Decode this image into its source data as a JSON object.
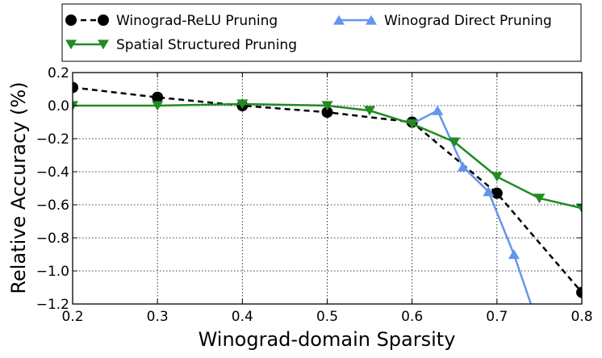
{
  "chart_data": {
    "type": "line",
    "xlabel": "Winograd-domain Sparsity",
    "ylabel": "Relative Accuracy (%)",
    "xlim": [
      0.2,
      0.8
    ],
    "ylim": [
      -1.2,
      0.2
    ],
    "x_ticks": [
      "0.2",
      "0.3",
      "0.4",
      "0.5",
      "0.6",
      "0.7",
      "0.8"
    ],
    "y_ticks": [
      "0.2",
      "0.0",
      "−0.2",
      "−0.4",
      "−0.6",
      "−0.8",
      "−1.0",
      "−1.2"
    ],
    "grid": true,
    "legend_position": "top",
    "series": [
      {
        "name": "Winograd-ReLU Pruning",
        "color": "#000000",
        "line_style": "dashed",
        "marker": "circle",
        "x": [
          0.2,
          0.3,
          0.4,
          0.5,
          0.6,
          0.7,
          0.8
        ],
        "y": [
          0.11,
          0.05,
          0.0,
          -0.04,
          -0.1,
          -0.53,
          -1.13
        ]
      },
      {
        "name": "Spatial Structured Pruning",
        "color": "#228b22",
        "line_style": "solid",
        "marker": "triangle-down",
        "x": [
          0.2,
          0.3,
          0.4,
          0.5,
          0.55,
          0.6,
          0.65,
          0.7,
          0.75,
          0.8
        ],
        "y": [
          0.0,
          0.0,
          0.01,
          0.0,
          -0.03,
          -0.11,
          -0.22,
          -0.43,
          -0.56,
          -0.62
        ]
      },
      {
        "name": "Winograd Direct Pruning",
        "color": "#6495ed",
        "line_style": "solid",
        "marker": "triangle-up",
        "x": [
          0.6,
          0.63,
          0.66,
          0.69,
          0.72,
          0.74
        ],
        "y": [
          -0.11,
          -0.03,
          -0.37,
          -0.52,
          -0.9,
          -1.2
        ],
        "visible_markers": [
          false,
          true,
          true,
          true,
          true,
          false
        ]
      }
    ]
  }
}
